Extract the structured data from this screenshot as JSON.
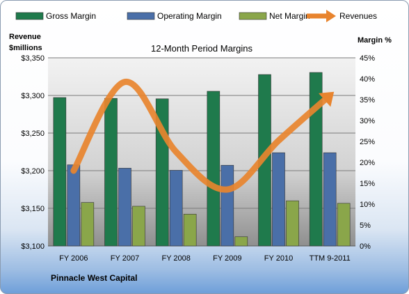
{
  "chart_data": {
    "type": "bar",
    "title": "12-Month Period Margins",
    "company": "Pinnacle West Capital",
    "ylabel_left": [
      "Revenue",
      "$millions"
    ],
    "ylabel_right": "Margin %",
    "categories": [
      "FY 2006",
      "FY 2007",
      "FY 2008",
      "FY 2009",
      "FY 2010",
      "TTM 9-2011"
    ],
    "left_axis": {
      "min": 3100,
      "max": 3350,
      "ticks": [
        "$3,100",
        "$3,150",
        "$3,200",
        "$3,250",
        "$3,300",
        "$3,350"
      ]
    },
    "right_axis": {
      "min": 0,
      "max": 45,
      "ticks": [
        "0%",
        "5%",
        "10%",
        "15%",
        "20%",
        "25%",
        "30%",
        "35%",
        "40%",
        "45%"
      ]
    },
    "series": [
      {
        "name": "Gross Margin",
        "axis": "right",
        "color": "#1f7a4c",
        "values": [
          35.5,
          35.3,
          35.2,
          37.0,
          41.0,
          41.5
        ]
      },
      {
        "name": "Operating Margin",
        "axis": "right",
        "color": "#4a6fa8",
        "values": [
          19.4,
          18.6,
          18.1,
          19.3,
          22.3,
          22.3
        ]
      },
      {
        "name": "Net Margin",
        "axis": "right",
        "color": "#8aa64a",
        "values": [
          10.4,
          9.5,
          7.6,
          2.2,
          10.8,
          10.2
        ]
      }
    ],
    "line_series": {
      "name": "Revenues",
      "axis": "left",
      "color": "#e8842e",
      "values": [
        3200,
        3318,
        3225,
        3175,
        3240,
        3300
      ]
    },
    "grid": true,
    "legend": "top"
  }
}
